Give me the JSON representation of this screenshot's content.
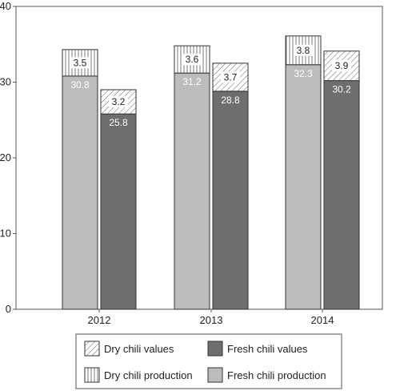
{
  "chart_data": {
    "type": "bar",
    "stacked": true,
    "categories": [
      "2012",
      "2013",
      "2014"
    ],
    "ylim": [
      0,
      40
    ],
    "yticks": [
      0,
      10,
      20,
      30,
      40
    ],
    "grid": false,
    "legend_position": "bottom",
    "groups": [
      {
        "name": "production",
        "series": [
          {
            "name": "Fresh chili production",
            "values": [
              30.8,
              31.2,
              32.3
            ],
            "fill": "light-gray",
            "color": "#bcbcbc"
          },
          {
            "name": "Dry chili production",
            "values": [
              3.5,
              3.6,
              3.8
            ],
            "fill": "vertical-hatch",
            "color": "#ffffff"
          }
        ]
      },
      {
        "name": "values",
        "series": [
          {
            "name": "Fresh chili values",
            "values": [
              25.8,
              28.8,
              30.2
            ],
            "fill": "dark-gray",
            "color": "#6e6e6e"
          },
          {
            "name": "Dry chili values",
            "values": [
              3.2,
              3.7,
              3.9
            ],
            "fill": "diagonal-hatch",
            "color": "#ffffff"
          }
        ]
      }
    ],
    "legend": [
      {
        "label": "Dry chili values",
        "fill": "diagonal-hatch"
      },
      {
        "label": "Fresh chili values",
        "fill": "dark-gray"
      },
      {
        "label": "Dry chili production",
        "fill": "vertical-hatch"
      },
      {
        "label": "Fresh chili production",
        "fill": "light-gray"
      }
    ]
  }
}
